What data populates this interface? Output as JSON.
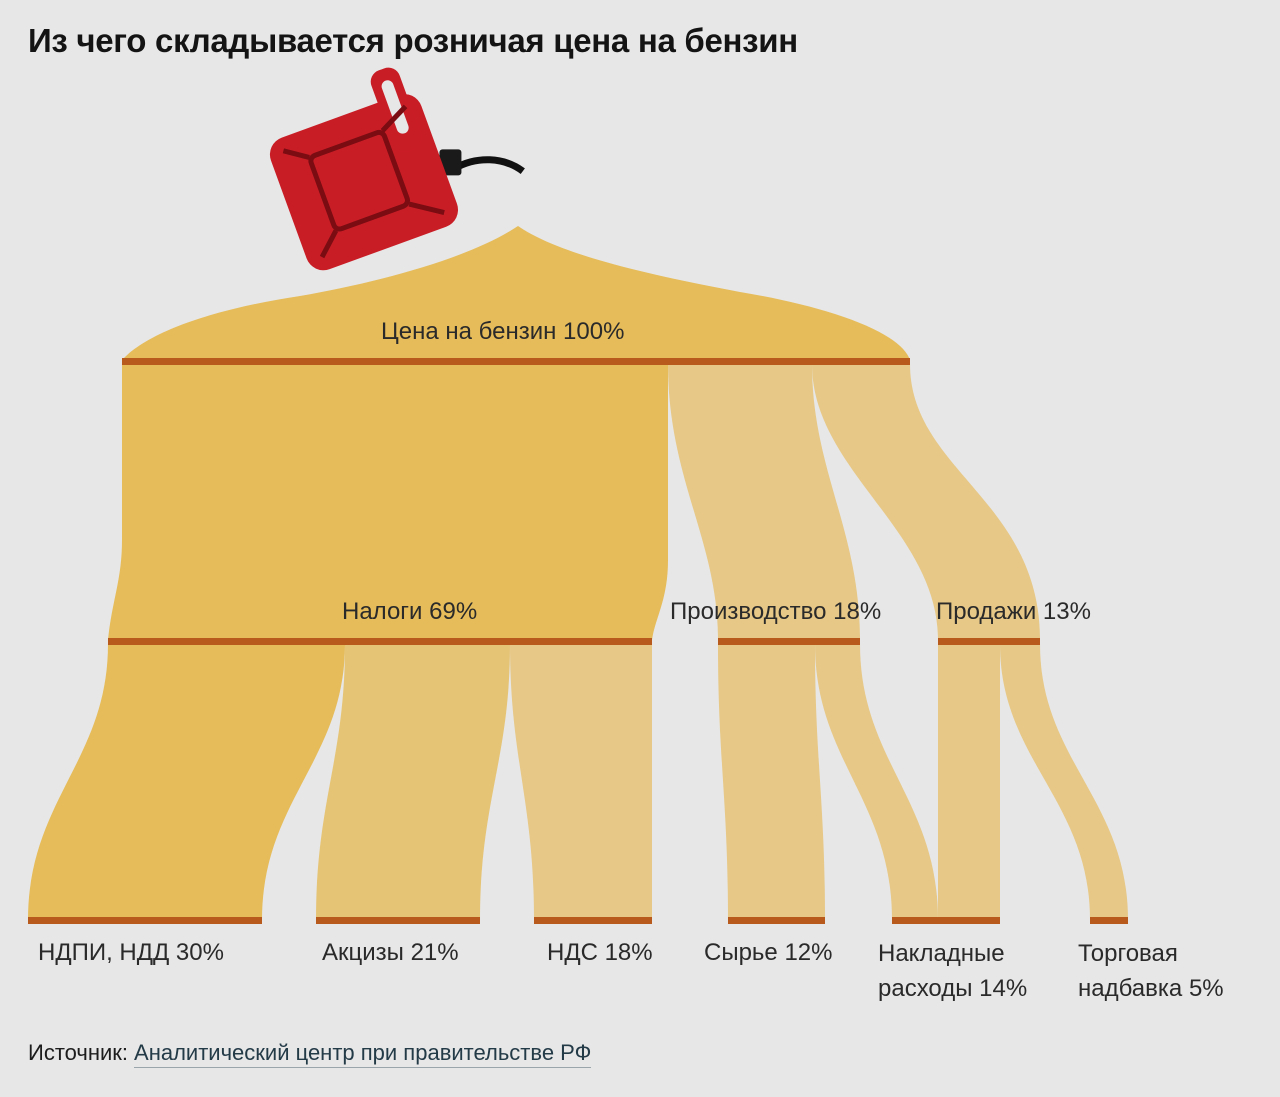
{
  "title": "Из чего складывается розничая цена на бензин",
  "colors": {
    "background": "#e7e7e7",
    "flow_strong": "#e6bc5a",
    "flow_light": "#e7c886",
    "bar": "#b85a1c",
    "canister": "#c91d26"
  },
  "icon": "fuel-canister-icon",
  "nodes": {
    "total": "Цена на бензин 100%",
    "taxes": "Налоги 69%",
    "production": "Производство 18%",
    "sales": "Продажи 13%",
    "ndpi": "НДПИ, НДД 30%",
    "excise": "Акцизы 21%",
    "vat": "НДС 18%",
    "raw": "Сырье 12%",
    "overhead": [
      "Накладные",
      "расходы 14%"
    ],
    "markup": [
      "Торговая",
      "надбавка 5%"
    ]
  },
  "source": {
    "label": "Источник:",
    "link": "Аналитический центр при правительстве РФ"
  }
}
